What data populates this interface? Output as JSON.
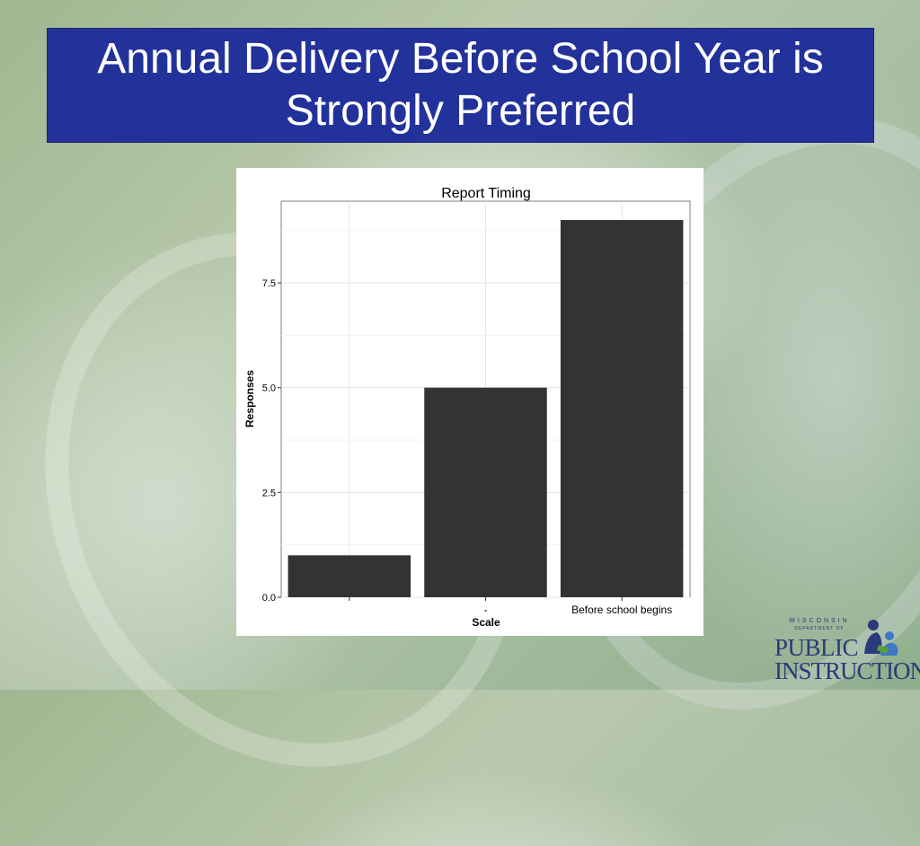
{
  "slide": {
    "title": "Annual Delivery Before School Year is Strongly Preferred"
  },
  "logo": {
    "top_small": "WISCONSIN",
    "top_small2": "DEPARTMENT OF",
    "line1": "PUBLIC",
    "line2": "INSTRUCTION",
    "colors": {
      "navy": "#2a3a7a",
      "blue": "#3e78c8",
      "green": "#5aa03c"
    }
  },
  "colors": {
    "title_bg": "#23329a",
    "bar": "#333333",
    "panel_border": "#7f7f7f",
    "grid": "#ebebeb"
  },
  "chart_data": {
    "type": "bar",
    "title": "Report Timing",
    "xlabel": "Scale",
    "ylabel": "Responses",
    "categories": [
      "",
      "-",
      "Before school begins"
    ],
    "values": [
      1,
      5,
      9
    ],
    "ylim": [
      0,
      9.45
    ],
    "yticks": [
      0.0,
      2.5,
      5.0,
      7.5
    ],
    "ytick_labels": [
      "0.0",
      "2.5",
      "5.0",
      "7.5"
    ],
    "grid": true,
    "legend": "none"
  }
}
